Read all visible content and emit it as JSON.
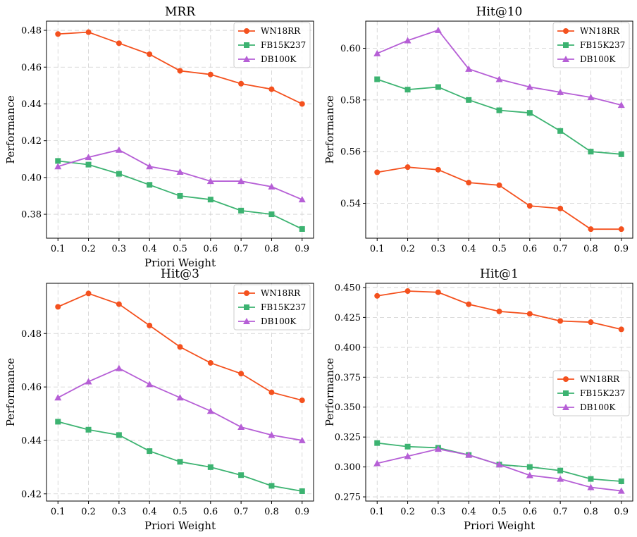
{
  "chart_data": [
    {
      "type": "line",
      "title": "MRR",
      "xlabel": "Priori Weight",
      "ylabel": "Performance",
      "x": [
        0.1,
        0.2,
        0.3,
        0.4,
        0.5,
        0.6,
        0.7,
        0.8,
        0.9
      ],
      "xticks": [
        "0.1",
        "0.2",
        "0.3",
        "0.4",
        "0.5",
        "0.6",
        "0.7",
        "0.8",
        "0.9"
      ],
      "ylim": [
        0.367,
        0.485
      ],
      "yticks": [
        0.38,
        0.4,
        0.42,
        0.44,
        0.46,
        0.48
      ],
      "yticklabels": [
        "0.38",
        "0.40",
        "0.42",
        "0.44",
        "0.46",
        "0.48"
      ],
      "legend": "top-right",
      "grid": true,
      "series": [
        {
          "name": "WN18RR",
          "color": "#f4511e",
          "marker": "circle",
          "values": [
            0.478,
            0.479,
            0.473,
            0.467,
            0.458,
            0.456,
            0.451,
            0.448,
            0.44
          ]
        },
        {
          "name": "FB15K237",
          "color": "#3cb371",
          "marker": "square",
          "values": [
            0.409,
            0.407,
            0.402,
            0.396,
            0.39,
            0.388,
            0.382,
            0.38,
            0.372
          ]
        },
        {
          "name": "DB100K",
          "color": "#b65fd6",
          "marker": "triangle",
          "values": [
            0.406,
            0.411,
            0.415,
            0.406,
            0.403,
            0.398,
            0.398,
            0.395,
            0.388
          ]
        }
      ]
    },
    {
      "type": "line",
      "title": "Hit@10",
      "xlabel": "",
      "ylabel": "Performance",
      "x": [
        0.1,
        0.2,
        0.3,
        0.4,
        0.5,
        0.6,
        0.7,
        0.8,
        0.9
      ],
      "xticks": [
        "0.1",
        "0.2",
        "0.3",
        "0.4",
        "0.5",
        "0.6",
        "0.7",
        "0.8",
        "0.9"
      ],
      "ylim": [
        0.5265,
        0.6105
      ],
      "yticks": [
        0.54,
        0.56,
        0.58,
        0.6
      ],
      "yticklabels": [
        "0.54",
        "0.56",
        "0.58",
        "0.60"
      ],
      "legend": "top-right",
      "grid": true,
      "series": [
        {
          "name": "WN18RR",
          "color": "#f4511e",
          "marker": "circle",
          "values": [
            0.552,
            0.554,
            0.553,
            0.548,
            0.547,
            0.539,
            0.538,
            0.53,
            0.53
          ]
        },
        {
          "name": "FB15K237",
          "color": "#3cb371",
          "marker": "square",
          "values": [
            0.588,
            0.584,
            0.585,
            0.58,
            0.576,
            0.575,
            0.568,
            0.56,
            0.559
          ]
        },
        {
          "name": "DB100K",
          "color": "#b65fd6",
          "marker": "triangle",
          "values": [
            0.598,
            0.603,
            0.607,
            0.592,
            0.588,
            0.585,
            0.583,
            0.581,
            0.578
          ]
        }
      ]
    },
    {
      "type": "line",
      "title": "Hit@3",
      "xlabel": "Priori Weight",
      "ylabel": "Performance",
      "x": [
        0.1,
        0.2,
        0.3,
        0.4,
        0.5,
        0.6,
        0.7,
        0.8,
        0.9
      ],
      "xticks": [
        "0.1",
        "0.2",
        "0.3",
        "0.4",
        "0.5",
        "0.6",
        "0.7",
        "0.8",
        "0.9"
      ],
      "ylim": [
        0.4173,
        0.4988
      ],
      "yticks": [
        0.42,
        0.44,
        0.46,
        0.48
      ],
      "yticklabels": [
        "0.42",
        "0.44",
        "0.46",
        "0.48"
      ],
      "legend": "top-right",
      "grid": true,
      "series": [
        {
          "name": "WN18RR",
          "color": "#f4511e",
          "marker": "circle",
          "values": [
            0.49,
            0.495,
            0.491,
            0.483,
            0.475,
            0.469,
            0.465,
            0.458,
            0.455
          ]
        },
        {
          "name": "FB15K237",
          "color": "#3cb371",
          "marker": "square",
          "values": [
            0.447,
            0.444,
            0.442,
            0.436,
            0.432,
            0.43,
            0.427,
            0.423,
            0.421
          ]
        },
        {
          "name": "DB100K",
          "color": "#b65fd6",
          "marker": "triangle",
          "values": [
            0.456,
            0.462,
            0.467,
            0.461,
            0.456,
            0.451,
            0.445,
            0.442,
            0.44
          ]
        }
      ]
    },
    {
      "type": "line",
      "title": "Hit@1",
      "xlabel": "Priori Weight",
      "ylabel": "Performance",
      "x": [
        0.1,
        0.2,
        0.3,
        0.4,
        0.5,
        0.6,
        0.7,
        0.8,
        0.9
      ],
      "xticks": [
        "0.1",
        "0.2",
        "0.3",
        "0.4",
        "0.5",
        "0.6",
        "0.7",
        "0.8",
        "0.9"
      ],
      "ylim": [
        0.2715,
        0.4535
      ],
      "yticks": [
        0.275,
        0.3,
        0.325,
        0.35,
        0.375,
        0.4,
        0.425,
        0.45
      ],
      "yticklabels": [
        "0.275",
        "0.300",
        "0.325",
        "0.350",
        "0.375",
        "0.400",
        "0.425",
        "0.450"
      ],
      "legend": "center-right",
      "grid": true,
      "series": [
        {
          "name": "WN18RR",
          "color": "#f4511e",
          "marker": "circle",
          "values": [
            0.443,
            0.447,
            0.446,
            0.436,
            0.43,
            0.428,
            0.422,
            0.421,
            0.415
          ]
        },
        {
          "name": "FB15K237",
          "color": "#3cb371",
          "marker": "square",
          "values": [
            0.32,
            0.317,
            0.316,
            0.31,
            0.302,
            0.3,
            0.297,
            0.29,
            0.288
          ]
        },
        {
          "name": "DB100K",
          "color": "#b65fd6",
          "marker": "triangle",
          "values": [
            0.303,
            0.309,
            0.315,
            0.31,
            0.302,
            0.293,
            0.29,
            0.283,
            0.28
          ]
        }
      ]
    }
  ]
}
